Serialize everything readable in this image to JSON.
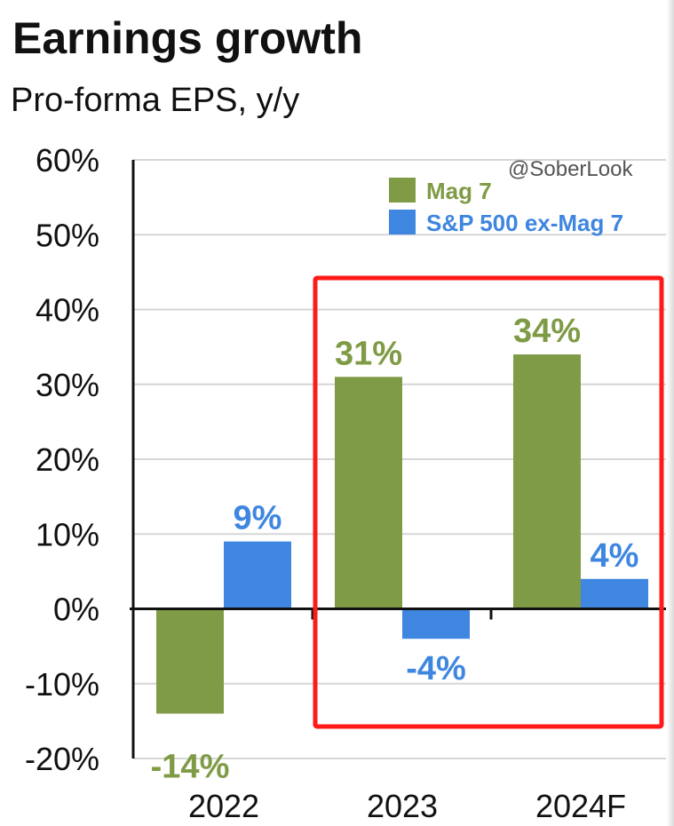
{
  "header": {
    "title": "Earnings growth",
    "subtitle": "Pro-forma EPS, y/y"
  },
  "watermark": "@SoberLook",
  "colors": {
    "mag7": "#7f9b45",
    "sp500_ex_mag7": "#3f86e0",
    "highlight_box": "#ff1a1a",
    "gridline": "#d6d6d6",
    "axis": "#111111"
  },
  "chart_data": {
    "type": "bar",
    "title": "Earnings growth",
    "subtitle": "Pro-forma EPS, y/y",
    "xlabel": "",
    "ylabel": "",
    "categories": [
      "2022",
      "2023",
      "2024F"
    ],
    "series": [
      {
        "name": "Mag 7",
        "values": [
          -14,
          31,
          34
        ],
        "labels": [
          "-14%",
          "31%",
          "34%"
        ]
      },
      {
        "name": "S&P 500 ex-Mag 7",
        "values": [
          9,
          -4,
          4
        ],
        "labels": [
          "9%",
          "-4%",
          "4%"
        ]
      }
    ],
    "ylim": [
      -20,
      60
    ],
    "yticks": [
      60,
      50,
      40,
      30,
      20,
      10,
      0,
      -10,
      -20
    ],
    "ytick_labels": [
      "60%",
      "50%",
      "40%",
      "30%",
      "20%",
      "10%",
      "0%",
      "-10%",
      "-20%"
    ],
    "grid": true,
    "legend_position": "top-right",
    "highlight": {
      "categories": [
        "2023",
        "2024F"
      ],
      "shape": "rectangle"
    }
  }
}
